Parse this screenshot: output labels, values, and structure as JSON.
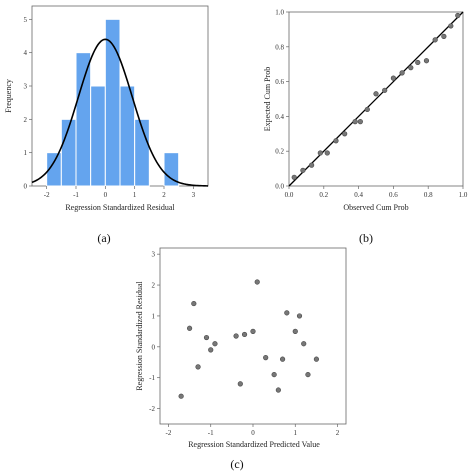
{
  "chart_data": [
    {
      "panel_label": "(a)",
      "type": "bar",
      "subtype": "histogram-with-normal-curve",
      "xlabel": "Regression Standardized Residual",
      "ylabel": "Frequency",
      "xlim": [
        -2.5,
        3.5
      ],
      "ylim": [
        0,
        5.4
      ],
      "xticks": [
        "-2",
        "-1",
        "0",
        "1",
        "2",
        "3"
      ],
      "yticks": [
        "0",
        "1",
        "2",
        "3",
        "4",
        "5"
      ],
      "bin_width": 0.5,
      "bins": [
        {
          "start": -2.0,
          "count": 1
        },
        {
          "start": -1.5,
          "count": 2
        },
        {
          "start": -1.0,
          "count": 4
        },
        {
          "start": -0.5,
          "count": 3
        },
        {
          "start": 0.0,
          "count": 5
        },
        {
          "start": 0.5,
          "count": 3
        },
        {
          "start": 1.0,
          "count": 2
        },
        {
          "start": 2.0,
          "count": 1
        }
      ],
      "normal_curve": {
        "mean": 0,
        "peak": 4.4,
        "sd": 0.92
      },
      "bar_color": "#64a4ee",
      "curve_color": "#000000",
      "grid": false
    },
    {
      "panel_label": "(b)",
      "type": "scatter",
      "subtype": "normal-p-p-plot",
      "xlabel": "Observed Cum Prob",
      "ylabel": "Expected Cum Prob",
      "xlim": [
        0,
        1
      ],
      "ylim": [
        0,
        1
      ],
      "xticks": [
        "0.0",
        "0.2",
        "0.4",
        "0.6",
        "0.8",
        "1.0"
      ],
      "yticks": [
        "0.0",
        "0.2",
        "0.4",
        "0.6",
        "0.8",
        "1.0"
      ],
      "reference_line": [
        [
          0,
          0
        ],
        [
          1,
          1
        ]
      ],
      "points": [
        [
          0.03,
          0.05
        ],
        [
          0.08,
          0.09
        ],
        [
          0.13,
          0.12
        ],
        [
          0.18,
          0.19
        ],
        [
          0.22,
          0.19
        ],
        [
          0.27,
          0.26
        ],
        [
          0.32,
          0.3
        ],
        [
          0.38,
          0.37
        ],
        [
          0.41,
          0.37
        ],
        [
          0.45,
          0.44
        ],
        [
          0.5,
          0.53
        ],
        [
          0.55,
          0.55
        ],
        [
          0.6,
          0.62
        ],
        [
          0.65,
          0.65
        ],
        [
          0.7,
          0.68
        ],
        [
          0.74,
          0.71
        ],
        [
          0.79,
          0.72
        ],
        [
          0.84,
          0.84
        ],
        [
          0.89,
          0.86
        ],
        [
          0.93,
          0.92
        ],
        [
          0.97,
          0.98
        ]
      ],
      "point_color": "#777777",
      "grid": false
    },
    {
      "panel_label": "(c)",
      "type": "scatter",
      "xlabel": "Regression Standardized Predicted Value",
      "ylabel": "Regression Standardized Residual",
      "xlim": [
        -2.2,
        2.2
      ],
      "ylim": [
        -2.5,
        3.2
      ],
      "xticks": [
        "-2",
        "-1",
        "0",
        "1",
        "2"
      ],
      "yticks": [
        "-2",
        "-1",
        "0",
        "1",
        "2",
        "3"
      ],
      "points": [
        [
          -1.7,
          -1.6
        ],
        [
          -1.5,
          0.6
        ],
        [
          -1.4,
          1.4
        ],
        [
          -1.3,
          -0.65
        ],
        [
          -1.1,
          0.3
        ],
        [
          -1.0,
          -0.1
        ],
        [
          -0.9,
          0.1
        ],
        [
          -0.4,
          0.35
        ],
        [
          -0.3,
          -1.2
        ],
        [
          -0.2,
          0.4
        ],
        [
          0.0,
          0.5
        ],
        [
          0.1,
          2.1
        ],
        [
          0.3,
          -0.35
        ],
        [
          0.5,
          -0.9
        ],
        [
          0.6,
          -1.4
        ],
        [
          0.7,
          -0.4
        ],
        [
          0.8,
          1.1
        ],
        [
          1.0,
          0.5
        ],
        [
          1.1,
          1.0
        ],
        [
          1.2,
          0.1
        ],
        [
          1.3,
          -0.9
        ],
        [
          1.5,
          -0.4
        ]
      ],
      "point_color": "#777777",
      "grid": false
    }
  ]
}
